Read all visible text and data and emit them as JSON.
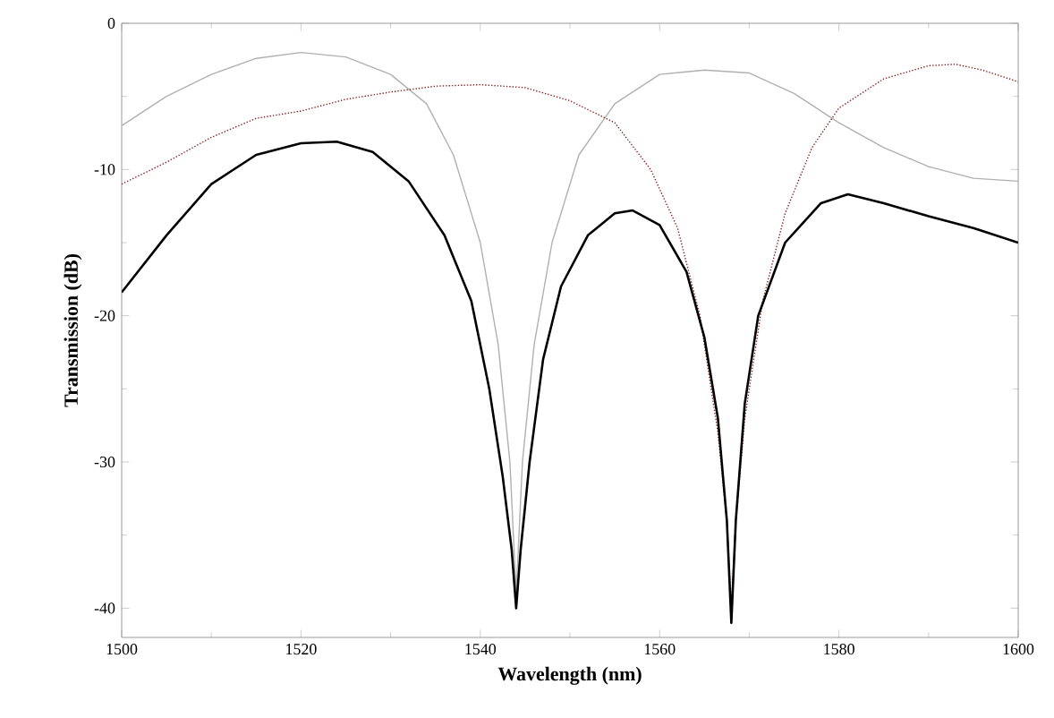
{
  "chart_data": {
    "type": "line",
    "xlabel": "Wavelength (nm)",
    "ylabel": "Transmission (dB)",
    "xlim": [
      1500,
      1600
    ],
    "ylim": [
      -42,
      0
    ],
    "xticks": [
      1500,
      1520,
      1540,
      1560,
      1580,
      1600
    ],
    "yticks": [
      0,
      -10,
      -20,
      -30,
      -40
    ],
    "grid": false,
    "series": [
      {
        "color": "#b0b0b0",
        "line_style": "solid",
        "x": [
          1500,
          1505,
          1510,
          1515,
          1520,
          1525,
          1530,
          1534,
          1537,
          1540,
          1542,
          1543.3,
          1544,
          1544.7,
          1546,
          1548,
          1551,
          1555,
          1560,
          1565,
          1570,
          1575,
          1580,
          1585,
          1590,
          1595,
          1600
        ],
        "values": [
          -7,
          -5,
          -3.5,
          -2.4,
          -2,
          -2.3,
          -3.5,
          -5.5,
          -9,
          -15,
          -22,
          -30,
          -39,
          -30,
          -22,
          -15,
          -9,
          -5.5,
          -3.5,
          -3.2,
          -3.4,
          -4.8,
          -6.8,
          -8.5,
          -9.8,
          -10.6,
          -10.8
        ]
      },
      {
        "color": "#8b2020",
        "line_style": "dotted",
        "x": [
          1500,
          1505,
          1510,
          1515,
          1520,
          1525,
          1530,
          1535,
          1540,
          1545,
          1550,
          1555,
          1559,
          1562,
          1564.5,
          1566.5,
          1567.5,
          1568,
          1568.5,
          1569.5,
          1571.5,
          1574,
          1577,
          1580,
          1585,
          1590,
          1593,
          1596,
          1600
        ],
        "values": [
          -11,
          -9.5,
          -7.8,
          -6.5,
          -6,
          -5.2,
          -4.7,
          -4.3,
          -4.2,
          -4.4,
          -5.3,
          -6.8,
          -10,
          -14,
          -20,
          -28,
          -34,
          -40,
          -34,
          -27,
          -19,
          -13,
          -8.5,
          -5.8,
          -3.8,
          -2.9,
          -2.8,
          -3.2,
          -4
        ]
      },
      {
        "color": "#000000",
        "line_style": "solid",
        "x": [
          1500,
          1505,
          1510,
          1515,
          1520,
          1524,
          1528,
          1532,
          1536,
          1539,
          1541,
          1542.5,
          1543.5,
          1544,
          1544.5,
          1545.5,
          1547,
          1549,
          1552,
          1555,
          1557,
          1560,
          1563,
          1565,
          1566.5,
          1567.5,
          1568,
          1568.5,
          1569.5,
          1571,
          1574,
          1578,
          1581,
          1585,
          1590,
          1595,
          1600
        ],
        "values": [
          -18.4,
          -14.5,
          -11,
          -9,
          -8.2,
          -8.1,
          -8.8,
          -10.8,
          -14.5,
          -19,
          -25,
          -31,
          -36,
          -40,
          -36,
          -30,
          -23,
          -18,
          -14.5,
          -13,
          -12.8,
          -13.8,
          -17,
          -21.5,
          -27,
          -34,
          -41,
          -34,
          -26,
          -20,
          -15,
          -12.3,
          -11.7,
          -12.3,
          -13.2,
          -14,
          -15
        ]
      }
    ]
  }
}
